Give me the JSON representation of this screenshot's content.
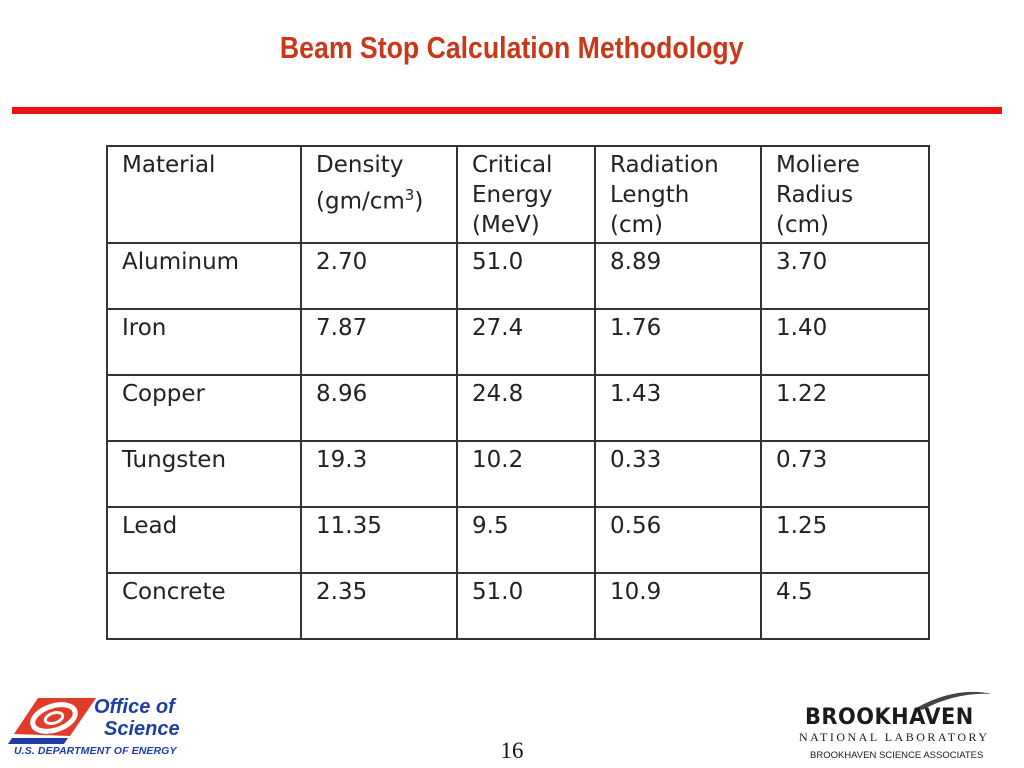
{
  "slide": {
    "title": "Beam Stop Calculation Methodology",
    "page_number": "16"
  },
  "table": {
    "headers": [
      [
        "Material"
      ],
      [
        "Density",
        "(gm/cm",
        "3",
        ")"
      ],
      [
        "Critical",
        "Energy",
        "(MeV)"
      ],
      [
        "Radiation",
        "Length",
        "(cm)"
      ],
      [
        "Moliere",
        "Radius",
        "(cm)"
      ]
    ],
    "rows": [
      [
        "Aluminum",
        "2.70",
        "51.0",
        "8.89",
        "3.70"
      ],
      [
        "Iron",
        "7.87",
        "27.4",
        "1.76",
        "1.40"
      ],
      [
        "Copper",
        "8.96",
        "24.8",
        "1.43",
        "1.22"
      ],
      [
        "Tungsten",
        "19.3",
        "10.2",
        "0.33",
        "0.73"
      ],
      [
        "Lead",
        "11.35",
        "9.5",
        "0.56",
        "1.25"
      ],
      [
        "Concrete",
        "2.35",
        "51.0",
        "10.9",
        "4.5"
      ]
    ]
  },
  "footer": {
    "left_logo_line1": "Office of",
    "left_logo_line2": "Science",
    "left_logo_dept": "U.S. DEPARTMENT OF ENERGY",
    "right_logo_name": "BROOKHAVEN",
    "right_logo_sub": "NATIONAL LABORATORY",
    "right_logo_assoc": "BROOKHAVEN SCIENCE ASSOCIATES"
  },
  "colors": {
    "title": "#c8391a",
    "rule": "#ee1111",
    "logo_blue": "#1f3da3",
    "logo_red": "#e23b2a"
  }
}
